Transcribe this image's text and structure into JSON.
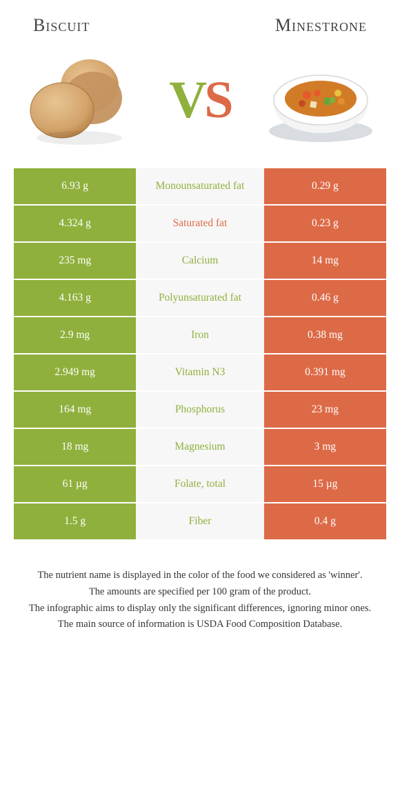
{
  "colors": {
    "left": "#8fb03c",
    "right": "#dd6a47",
    "mid_bg": "#f7f7f7",
    "text": "#333333"
  },
  "header": {
    "left_title": "Biscuit",
    "right_title": "Minestrone"
  },
  "vs": {
    "v": "V",
    "s": "S"
  },
  "rows": [
    {
      "left": "6.93 g",
      "label": "Monounsaturated fat",
      "right": "0.29 g",
      "winner": "left"
    },
    {
      "left": "4.324 g",
      "label": "Saturated fat",
      "right": "0.23 g",
      "winner": "right"
    },
    {
      "left": "235 mg",
      "label": "Calcium",
      "right": "14 mg",
      "winner": "left"
    },
    {
      "left": "4.163 g",
      "label": "Polyunsaturated fat",
      "right": "0.46 g",
      "winner": "left"
    },
    {
      "left": "2.9 mg",
      "label": "Iron",
      "right": "0.38 mg",
      "winner": "left"
    },
    {
      "left": "2.949 mg",
      "label": "Vitamin N3",
      "right": "0.391 mg",
      "winner": "left"
    },
    {
      "left": "164 mg",
      "label": "Phosphorus",
      "right": "23 mg",
      "winner": "left"
    },
    {
      "left": "18 mg",
      "label": "Magnesium",
      "right": "3 mg",
      "winner": "left"
    },
    {
      "left": "61 µg",
      "label": "Folate, total",
      "right": "15 µg",
      "winner": "left"
    },
    {
      "left": "1.5 g",
      "label": "Fiber",
      "right": "0.4 g",
      "winner": "left"
    }
  ],
  "footer": {
    "l1": "The nutrient name is displayed in the color of the food we considered as 'winner'.",
    "l2": "The amounts are specified per 100 gram of the product.",
    "l3": "The infographic aims to display only the significant differences, ignoring minor ones.",
    "l4": "The main source of information is USDA Food Composition Database."
  }
}
